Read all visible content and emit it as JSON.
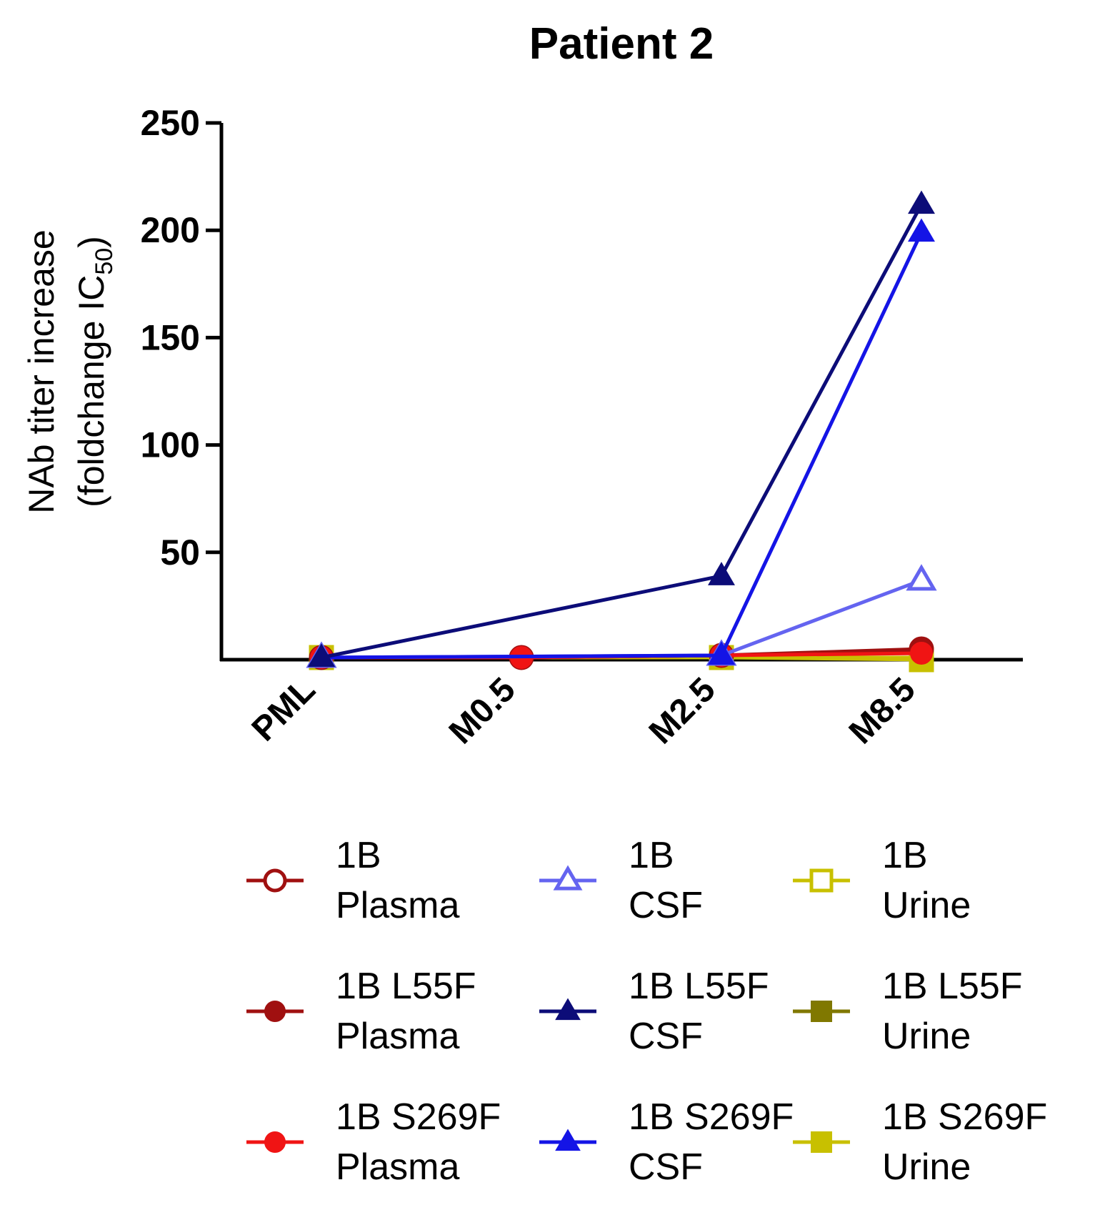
{
  "chart_data": {
    "type": "line",
    "title": "Patient 2",
    "xlabel": "",
    "ylabel": "NAb titer increase",
    "ylabel_line2_prefix": "(foldchange IC",
    "ylabel_line2_sub": "50",
    "ylabel_line2_suffix": ")",
    "categories": [
      "PML",
      "M0.5",
      "M2.5",
      "M8.5"
    ],
    "ylim": [
      0,
      250
    ],
    "yticks": [
      "50",
      "100",
      "150",
      "200",
      "250"
    ],
    "grid": false,
    "legend_position": "bottom",
    "series": [
      {
        "legend_line1": "1B",
        "legend_line2": "Plasma",
        "color": "#a01010",
        "marker": "circle-open",
        "values": [
          1,
          1,
          2,
          5
        ]
      },
      {
        "legend_line1": "1B",
        "legend_line2": "CSF",
        "color": "#6464f0",
        "marker": "triangle-open",
        "values": [
          1,
          null,
          2,
          37
        ]
      },
      {
        "legend_line1": "1B",
        "legend_line2": "Urine",
        "color": "#c8c000",
        "marker": "square-open",
        "values": [
          1,
          null,
          1,
          0
        ]
      },
      {
        "legend_line1": "1B L55F",
        "legend_line2": "Plasma",
        "color": "#a01010",
        "marker": "circle-filled",
        "values": [
          1,
          1,
          2,
          4
        ]
      },
      {
        "legend_line1": "1B L55F",
        "legend_line2": "CSF",
        "color": "#0c0c78",
        "marker": "triangle-filled",
        "values": [
          1,
          null,
          39,
          212
        ]
      },
      {
        "legend_line1": "1B L55F",
        "legend_line2": "Urine",
        "color": "#807800",
        "marker": "square-filled",
        "values": [
          1,
          null,
          1,
          1
        ]
      },
      {
        "legend_line1": "1B S269F",
        "legend_line2": "Plasma",
        "color": "#f01414",
        "marker": "circle-filled",
        "values": [
          1,
          1,
          2,
          3
        ]
      },
      {
        "legend_line1": "1B S269F",
        "legend_line2": "CSF",
        "color": "#1414e6",
        "marker": "triangle-filled",
        "values": [
          1,
          null,
          2,
          199
        ]
      },
      {
        "legend_line1": "1B S269F",
        "legend_line2": "Urine",
        "color": "#c8c000",
        "marker": "square-filled",
        "values": [
          1,
          null,
          1,
          1
        ]
      }
    ]
  }
}
